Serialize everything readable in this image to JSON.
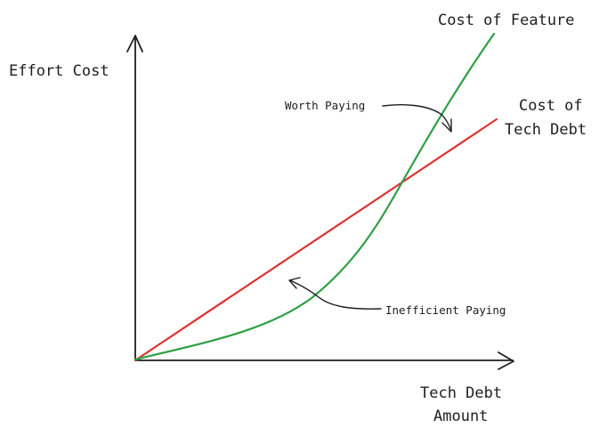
{
  "diagram": {
    "y_axis_label": "Effort Cost",
    "x_axis_label_line1": "Tech Debt",
    "x_axis_label_line2": "Amount",
    "feature_curve_label": "Cost of Feature",
    "debt_line_label_line1": "Cost of",
    "debt_line_label_line2": "Tech Debt",
    "upper_region_label": "Worth Paying",
    "lower_region_label": "Inefficient Paying",
    "colors": {
      "feature_curve": "#2f9e44",
      "debt_line": "#e03131",
      "axes": "#1e1e1e"
    }
  }
}
